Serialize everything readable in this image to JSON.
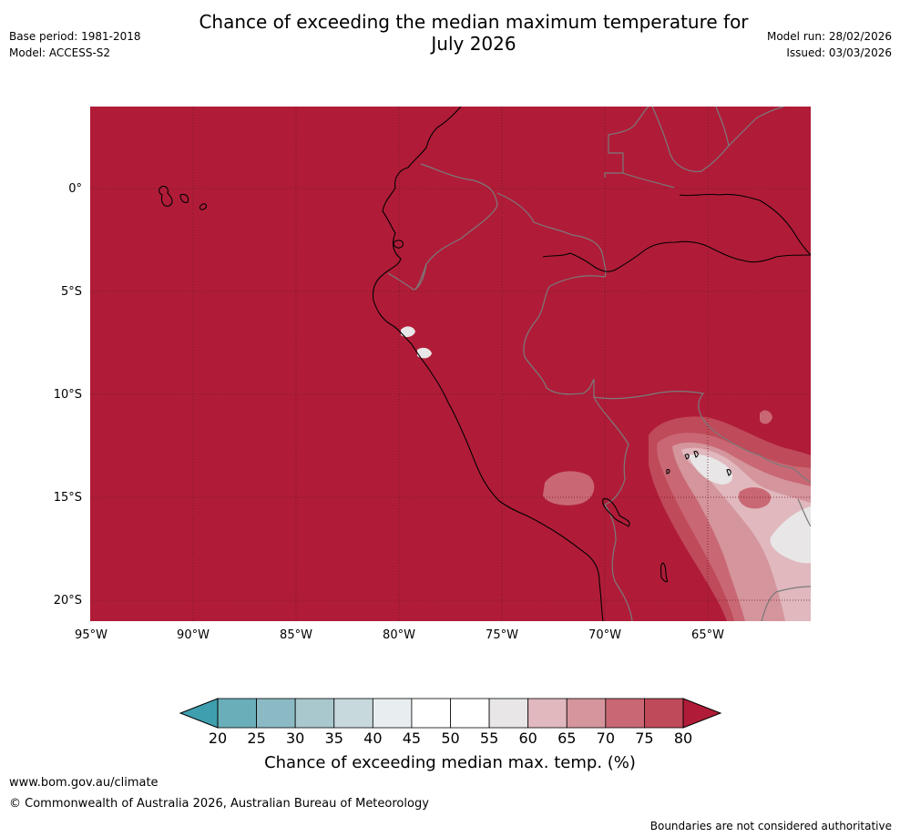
{
  "header": {
    "title_line1": "Chance of exceeding the median maximum temperature for",
    "title_line2": "July 2026",
    "base_period": "Base period: 1981-2018",
    "model": "Model: ACCESS-S2",
    "model_run": "Model run: 28/02/2026",
    "issued": "Issued: 03/03/2026"
  },
  "map": {
    "region": "Western South America",
    "background_category_percent": 80,
    "lon_ticks": [
      "95°W",
      "90°W",
      "85°W",
      "80°W",
      "75°W",
      "70°W",
      "65°W"
    ],
    "lat_ticks": [
      "0°",
      "5°S",
      "10°S",
      "15°S",
      "20°S"
    ],
    "gridlines": true,
    "colors": {
      "deep_red": "#b01c38",
      "coast": "#000000",
      "borders": "#7a7a7a"
    }
  },
  "colorbar": {
    "title": "Chance of exceeding median max. temp. (%)",
    "tick_labels": [
      "20",
      "25",
      "30",
      "35",
      "40",
      "45",
      "50",
      "55",
      "60",
      "65",
      "70",
      "75",
      "80"
    ],
    "bins": [
      {
        "from": 20,
        "to": 25,
        "color": "#6aaeb9"
      },
      {
        "from": 25,
        "to": 30,
        "color": "#8bbac4"
      },
      {
        "from": 30,
        "to": 35,
        "color": "#a9c8ce"
      },
      {
        "from": 35,
        "to": 40,
        "color": "#c8d9dd"
      },
      {
        "from": 40,
        "to": 45,
        "color": "#e8eef0"
      },
      {
        "from": 45,
        "to": 50,
        "color": "#ffffff"
      },
      {
        "from": 50,
        "to": 55,
        "color": "#ffffff"
      },
      {
        "from": 55,
        "to": 60,
        "color": "#e8e6e7"
      },
      {
        "from": 60,
        "to": 65,
        "color": "#e0b8bd"
      },
      {
        "from": 65,
        "to": 70,
        "color": "#d4959c"
      },
      {
        "from": 70,
        "to": 75,
        "color": "#c96874"
      },
      {
        "from": 75,
        "to": 80,
        "color": "#bf4a59"
      }
    ],
    "extend_low_color": "#3f9fae",
    "extend_high_color": "#b01c38"
  },
  "footer": {
    "url": "www.bom.gov.au/climate",
    "copyright": "© Commonwealth of Australia 2026, Australian Bureau of Meteorology",
    "disclaimer": "Boundaries are not considered authoritative"
  }
}
